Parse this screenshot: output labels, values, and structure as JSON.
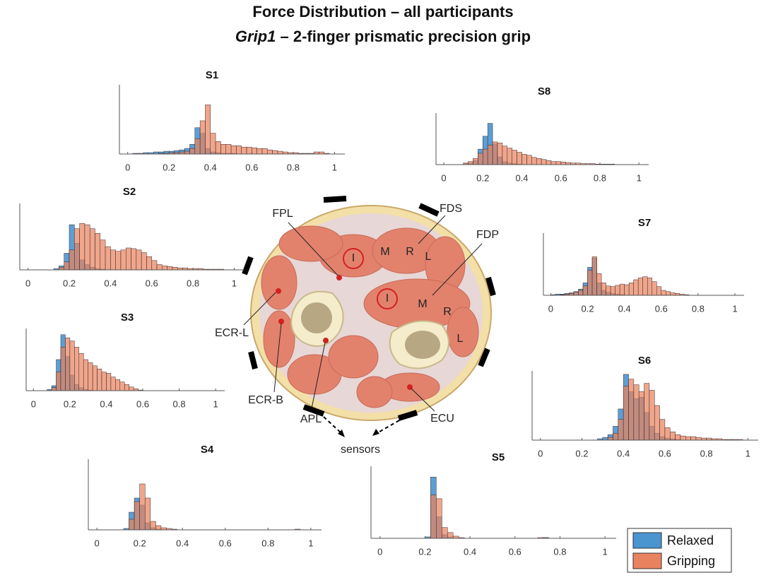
{
  "title": "Force Distribution – all participants",
  "subtitle": [
    "Grip1",
    "– 2-finger prismatic precision grip"
  ],
  "legend": {
    "entries": [
      {
        "name": "Relaxed",
        "color": "#4a94d0"
      },
      {
        "name": "Gripping",
        "color": "#e9835f"
      }
    ]
  },
  "diagram": {
    "labels": [
      "FPL",
      "FDS",
      "FDP",
      "I",
      "M",
      "R",
      "L",
      "I",
      "M",
      "R",
      "L",
      "ECR-L",
      "ECR-B",
      "APL",
      "ECU",
      "sensors"
    ]
  },
  "chart_data": [
    {
      "type": "histogram",
      "title": "S1",
      "bins": [
        0,
        0.025,
        0.05,
        0.075,
        0.1,
        0.125,
        0.15,
        0.175,
        0.2,
        0.225,
        0.25,
        0.275,
        0.3,
        0.325,
        0.35,
        0.375,
        0.4,
        0.425,
        0.45,
        0.475,
        0.5,
        0.525,
        0.55,
        0.575,
        0.6,
        0.625,
        0.65,
        0.675,
        0.7,
        0.725,
        0.75,
        0.775,
        0.8,
        0.825,
        0.85,
        0.875,
        0.9,
        0.925,
        0.95,
        0.975,
        1
      ],
      "series": [
        {
          "values": [
            0,
            1,
            1,
            2,
            2,
            3,
            3,
            4,
            4,
            5,
            6,
            8,
            14,
            38,
            30,
            8,
            3,
            2,
            1,
            1,
            1,
            0,
            0,
            0,
            0,
            0,
            0,
            0,
            0,
            0,
            0,
            0,
            0,
            0,
            0,
            0,
            0,
            0,
            0,
            0
          ]
        },
        {
          "values": [
            0,
            0,
            0,
            0,
            0,
            0,
            1,
            1,
            2,
            2,
            3,
            4,
            8,
            22,
            48,
            71,
            30,
            18,
            14,
            14,
            12,
            12,
            10,
            10,
            9,
            8,
            8,
            6,
            5,
            4,
            3,
            2,
            2,
            1,
            1,
            1,
            3,
            3,
            1,
            0
          ]
        }
      ],
      "xlim": [
        -0.04,
        1.05
      ],
      "xticks": [
        0,
        0.2,
        0.4,
        0.6,
        0.8,
        1
      ],
      "ylim": [
        0,
        100
      ]
    },
    {
      "type": "histogram",
      "title": "S2",
      "bins": [
        0,
        0.025,
        0.05,
        0.075,
        0.1,
        0.125,
        0.15,
        0.175,
        0.2,
        0.225,
        0.25,
        0.275,
        0.3,
        0.325,
        0.35,
        0.375,
        0.4,
        0.425,
        0.45,
        0.475,
        0.5,
        0.525,
        0.55,
        0.575,
        0.6,
        0.625,
        0.65,
        0.675,
        0.7,
        0.725,
        0.75,
        0.775,
        0.8,
        0.825,
        0.85,
        0.875,
        0.9,
        0.925,
        0.95,
        0.975,
        1
      ],
      "series": [
        {
          "values": [
            0,
            0,
            0,
            0,
            0,
            2,
            6,
            25,
            68,
            40,
            15,
            8,
            4,
            2,
            1,
            0,
            0,
            0,
            0,
            0,
            0,
            0,
            0,
            0,
            0,
            0,
            0,
            0,
            0,
            0,
            0,
            0,
            0,
            0,
            0,
            0,
            0,
            0,
            0,
            0
          ]
        },
        {
          "values": [
            0,
            0,
            0,
            0,
            0,
            0,
            4,
            12,
            30,
            62,
            70,
            68,
            62,
            55,
            45,
            35,
            30,
            28,
            30,
            33,
            32,
            30,
            26,
            20,
            14,
            8,
            6,
            5,
            4,
            3,
            3,
            2,
            2,
            2,
            1,
            1,
            1,
            1,
            0,
            0
          ]
        }
      ],
      "xlim": [
        -0.04,
        1.05
      ],
      "xticks": [
        0,
        0.2,
        0.4,
        0.6,
        0.8,
        1
      ],
      "ylim": [
        0,
        100
      ]
    },
    {
      "type": "histogram",
      "title": "S3",
      "bins": [
        0,
        0.025,
        0.05,
        0.075,
        0.1,
        0.125,
        0.15,
        0.175,
        0.2,
        0.225,
        0.25,
        0.275,
        0.3,
        0.325,
        0.35,
        0.375,
        0.4,
        0.425,
        0.45,
        0.475,
        0.5,
        0.525,
        0.55,
        0.575,
        0.6,
        0.625,
        0.65,
        0.675,
        0.7,
        0.725,
        0.75,
        0.775,
        0.8,
        0.825,
        0.85,
        0.875,
        0.9,
        0.925,
        0.95,
        0.975,
        1
      ],
      "series": [
        {
          "values": [
            0,
            0,
            0,
            2,
            8,
            50,
            90,
            55,
            25,
            10,
            5,
            2,
            1,
            0,
            0,
            0,
            0,
            0,
            0,
            0,
            0,
            0,
            0,
            0,
            0,
            0,
            0,
            0,
            0,
            0,
            0,
            0,
            0,
            0,
            0,
            0,
            0,
            0,
            0,
            0
          ]
        },
        {
          "values": [
            0,
            0,
            0,
            0,
            5,
            30,
            70,
            85,
            80,
            70,
            60,
            50,
            45,
            40,
            35,
            30,
            28,
            22,
            18,
            14,
            10,
            6,
            3,
            1,
            0,
            0,
            0,
            0,
            0,
            0,
            0,
            0,
            0,
            0,
            0,
            0,
            0,
            0,
            0,
            0
          ]
        }
      ],
      "xlim": [
        -0.04,
        1.05
      ],
      "xticks": [
        0,
        0.2,
        0.4,
        0.6,
        0.8,
        1
      ],
      "ylim": [
        0,
        100
      ]
    },
    {
      "type": "histogram",
      "title": "S4",
      "bins": [
        0,
        0.025,
        0.05,
        0.075,
        0.1,
        0.125,
        0.15,
        0.175,
        0.2,
        0.225,
        0.25,
        0.275,
        0.3,
        0.325,
        0.35,
        0.375,
        0.4,
        0.425,
        0.45,
        0.475,
        0.5,
        0.525,
        0.55,
        0.575,
        0.6,
        0.625,
        0.65,
        0.675,
        0.7,
        0.725,
        0.75,
        0.775,
        0.8,
        0.825,
        0.85,
        0.875,
        0.9,
        0.925,
        0.95,
        0.975,
        1
      ],
      "series": [
        {
          "values": [
            0,
            0,
            0,
            0,
            0,
            2,
            25,
            45,
            35,
            10,
            3,
            1,
            0,
            0,
            0,
            0,
            0,
            0,
            0,
            0,
            0,
            0,
            0,
            0,
            0,
            0,
            0,
            0,
            0,
            0,
            0,
            0,
            0,
            0,
            0,
            0,
            0,
            0,
            0,
            0
          ]
        },
        {
          "values": [
            0,
            0,
            0,
            0,
            0,
            0,
            15,
            40,
            65,
            45,
            12,
            6,
            3,
            2,
            1,
            0,
            0,
            0,
            0,
            0,
            0,
            0,
            0,
            0,
            0,
            0,
            0,
            0,
            0,
            0,
            0,
            0,
            0,
            0,
            0,
            0,
            0,
            1,
            0,
            0
          ]
        }
      ],
      "xlim": [
        -0.04,
        1.05
      ],
      "xticks": [
        0,
        0.2,
        0.4,
        0.6,
        0.8,
        1
      ],
      "ylim": [
        0,
        100
      ]
    },
    {
      "type": "histogram",
      "title": "S5",
      "bins": [
        0,
        0.025,
        0.05,
        0.075,
        0.1,
        0.125,
        0.15,
        0.175,
        0.2,
        0.225,
        0.25,
        0.275,
        0.3,
        0.325,
        0.35,
        0.375,
        0.4,
        0.425,
        0.45,
        0.475,
        0.5,
        0.525,
        0.55,
        0.575,
        0.6,
        0.625,
        0.65,
        0.675,
        0.7,
        0.725,
        0.75,
        0.775,
        0.8,
        0.825,
        0.85,
        0.875,
        0.9,
        0.925,
        0.95,
        0.975,
        1
      ],
      "series": [
        {
          "values": [
            0,
            0,
            0,
            0,
            0,
            0,
            0,
            0,
            2,
            85,
            30,
            5,
            2,
            0,
            0,
            0,
            0,
            0,
            0,
            0,
            0,
            0,
            0,
            0,
            0,
            0,
            0,
            0,
            0,
            1,
            0,
            0,
            0,
            0,
            0,
            0,
            0,
            0,
            0,
            0
          ]
        },
        {
          "values": [
            0,
            0,
            0,
            0,
            0,
            0,
            0,
            0,
            0,
            60,
            55,
            15,
            8,
            3,
            1,
            0,
            0,
            0,
            0,
            0,
            0,
            0,
            0,
            0,
            0,
            0,
            0,
            0,
            1,
            1,
            0,
            0,
            0,
            0,
            0,
            0,
            0,
            0,
            0,
            0
          ]
        }
      ],
      "xlim": [
        -0.04,
        1.05
      ],
      "xticks": [
        0,
        0.2,
        0.4,
        0.6,
        0.8,
        1
      ],
      "ylim": [
        0,
        100
      ]
    },
    {
      "type": "histogram",
      "title": "S6",
      "bins": [
        0,
        0.025,
        0.05,
        0.075,
        0.1,
        0.125,
        0.15,
        0.175,
        0.2,
        0.225,
        0.25,
        0.275,
        0.3,
        0.325,
        0.35,
        0.375,
        0.4,
        0.425,
        0.45,
        0.475,
        0.5,
        0.525,
        0.55,
        0.575,
        0.6,
        0.625,
        0.65,
        0.675,
        0.7,
        0.725,
        0.75,
        0.775,
        0.8,
        0.825,
        0.85,
        0.875,
        0.9,
        0.925,
        0.95,
        0.975,
        1
      ],
      "series": [
        {
          "values": [
            0,
            0,
            0,
            0,
            0,
            0,
            0,
            0,
            0,
            0,
            0,
            2,
            4,
            8,
            20,
            45,
            95,
            70,
            60,
            62,
            40,
            20,
            10,
            5,
            3,
            2,
            1,
            0,
            0,
            0,
            0,
            0,
            0,
            0,
            0,
            0,
            0,
            0,
            0,
            0
          ]
        },
        {
          "values": [
            0,
            0,
            0,
            0,
            0,
            0,
            0,
            0,
            0,
            0,
            0,
            0,
            0,
            4,
            10,
            30,
            78,
            88,
            80,
            70,
            82,
            72,
            50,
            30,
            18,
            12,
            8,
            6,
            5,
            5,
            4,
            3,
            3,
            2,
            2,
            1,
            1,
            1,
            1,
            0
          ]
        }
      ],
      "xlim": [
        -0.04,
        1.05
      ],
      "xticks": [
        0,
        0.2,
        0.4,
        0.6,
        0.8,
        1
      ],
      "ylim": [
        0,
        100
      ]
    },
    {
      "type": "histogram",
      "title": "S7",
      "bins": [
        0,
        0.025,
        0.05,
        0.075,
        0.1,
        0.125,
        0.15,
        0.175,
        0.2,
        0.225,
        0.25,
        0.275,
        0.3,
        0.325,
        0.35,
        0.375,
        0.4,
        0.425,
        0.45,
        0.475,
        0.5,
        0.525,
        0.55,
        0.575,
        0.6,
        0.625,
        0.65,
        0.675,
        0.7,
        0.725,
        0.75,
        0.775,
        0.8,
        0.825,
        0.85,
        0.875,
        0.9,
        0.925,
        0.95,
        0.975,
        1
      ],
      "series": [
        {
          "values": [
            1,
            2,
            2,
            3,
            4,
            6,
            10,
            20,
            45,
            60,
            20,
            8,
            5,
            3,
            2,
            1,
            0,
            0,
            0,
            0,
            0,
            0,
            0,
            0,
            0,
            0,
            0,
            0,
            0,
            0,
            0,
            0,
            0,
            0,
            0,
            0,
            0,
            0,
            0,
            0
          ]
        },
        {
          "values": [
            0,
            0,
            1,
            2,
            3,
            5,
            8,
            15,
            40,
            62,
            35,
            20,
            15,
            14,
            16,
            18,
            17,
            20,
            25,
            28,
            30,
            28,
            22,
            14,
            8,
            6,
            4,
            3,
            2,
            1,
            0,
            0,
            0,
            0,
            0,
            0,
            0,
            0,
            0,
            0
          ]
        }
      ],
      "xlim": [
        -0.04,
        1.05
      ],
      "xticks": [
        0,
        0.2,
        0.4,
        0.6,
        0.8,
        1
      ],
      "ylim": [
        0,
        100
      ]
    },
    {
      "type": "histogram",
      "title": "S8",
      "bins": [
        0,
        0.025,
        0.05,
        0.075,
        0.1,
        0.125,
        0.15,
        0.175,
        0.2,
        0.225,
        0.25,
        0.275,
        0.3,
        0.325,
        0.35,
        0.375,
        0.4,
        0.425,
        0.45,
        0.475,
        0.5,
        0.525,
        0.55,
        0.575,
        0.6,
        0.625,
        0.65,
        0.675,
        0.7,
        0.725,
        0.75,
        0.775,
        0.8,
        0.825,
        0.85,
        0.875,
        0.9,
        0.925,
        0.95,
        0.975,
        1
      ],
      "series": [
        {
          "values": [
            0,
            0,
            0,
            0,
            2,
            3,
            8,
            30,
            55,
            80,
            40,
            15,
            6,
            3,
            2,
            1,
            0,
            0,
            0,
            0,
            0,
            0,
            0,
            0,
            0,
            0,
            0,
            0,
            0,
            0,
            0,
            0,
            0,
            0,
            0,
            0,
            0,
            0,
            0,
            0
          ]
        },
        {
          "values": [
            0,
            0,
            0,
            0,
            3,
            6,
            12,
            22,
            30,
            38,
            44,
            42,
            36,
            32,
            28,
            24,
            20,
            18,
            14,
            12,
            10,
            8,
            6,
            6,
            5,
            4,
            3,
            3,
            2,
            2,
            2,
            1,
            1,
            1,
            1,
            0,
            0,
            0,
            0,
            0
          ]
        }
      ],
      "xlim": [
        -0.04,
        1.05
      ],
      "xticks": [
        0,
        0.2,
        0.4,
        0.6,
        0.8,
        1
      ],
      "ylim": [
        0,
        100
      ]
    }
  ]
}
